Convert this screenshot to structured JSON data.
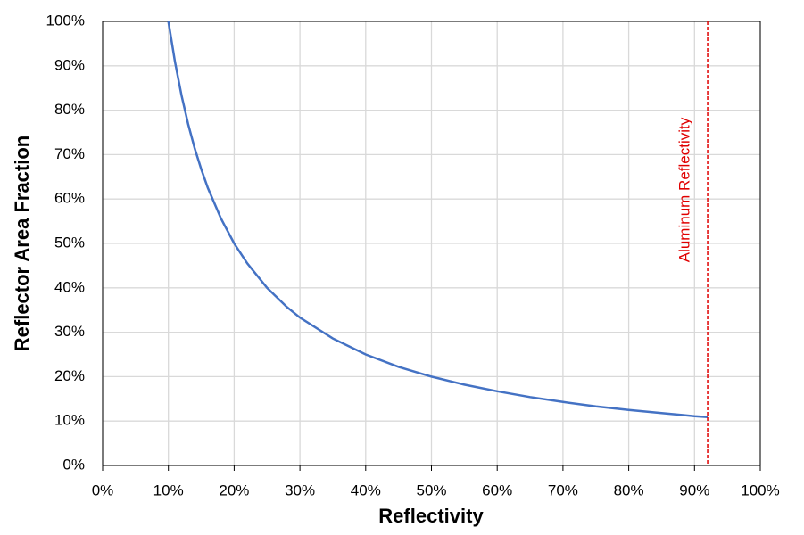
{
  "chart_data": {
    "type": "line",
    "x_label": "Reflectivity",
    "y_label": "Reflector Area Fraction",
    "x": [
      10,
      11,
      12,
      13,
      14,
      15,
      16,
      18,
      20,
      22,
      25,
      28,
      30,
      35,
      40,
      45,
      50,
      55,
      60,
      65,
      70,
      75,
      80,
      85,
      90,
      92
    ],
    "series": [
      {
        "color": "#4472c4",
        "values": [
          100,
          90.9,
          83.3,
          76.9,
          71.4,
          66.7,
          62.5,
          55.6,
          50,
          45.5,
          40,
          35.7,
          33.3,
          28.6,
          25,
          22.2,
          20,
          18.2,
          16.7,
          15.4,
          14.3,
          13.3,
          12.5,
          11.8,
          11.1,
          10.9
        ]
      }
    ],
    "reference_line": {
      "x": 92,
      "label": "Aluminum Reflectivity",
      "color": "#e00000"
    },
    "xlim": [
      0,
      100
    ],
    "ylim": [
      0,
      100
    ],
    "xticks": [
      {
        "value": 0,
        "label": "0%"
      },
      {
        "value": 10,
        "label": "10%"
      },
      {
        "value": 20,
        "label": "20%"
      },
      {
        "value": 30,
        "label": "30%"
      },
      {
        "value": 40,
        "label": "40%"
      },
      {
        "value": 50,
        "label": "50%"
      },
      {
        "value": 60,
        "label": "60%"
      },
      {
        "value": 70,
        "label": "70%"
      },
      {
        "value": 80,
        "label": "80%"
      },
      {
        "value": 90,
        "label": "90%"
      },
      {
        "value": 100,
        "label": "100%"
      }
    ],
    "yticks": [
      {
        "value": 0,
        "label": "0%"
      },
      {
        "value": 10,
        "label": "10%"
      },
      {
        "value": 20,
        "label": "20%"
      },
      {
        "value": 30,
        "label": "30%"
      },
      {
        "value": 40,
        "label": "40%"
      },
      {
        "value": 50,
        "label": "50%"
      },
      {
        "value": 60,
        "label": "60%"
      },
      {
        "value": 70,
        "label": "70%"
      },
      {
        "value": 80,
        "label": "80%"
      },
      {
        "value": 90,
        "label": "90%"
      },
      {
        "value": 100,
        "label": "100%"
      }
    ],
    "grid": true
  }
}
